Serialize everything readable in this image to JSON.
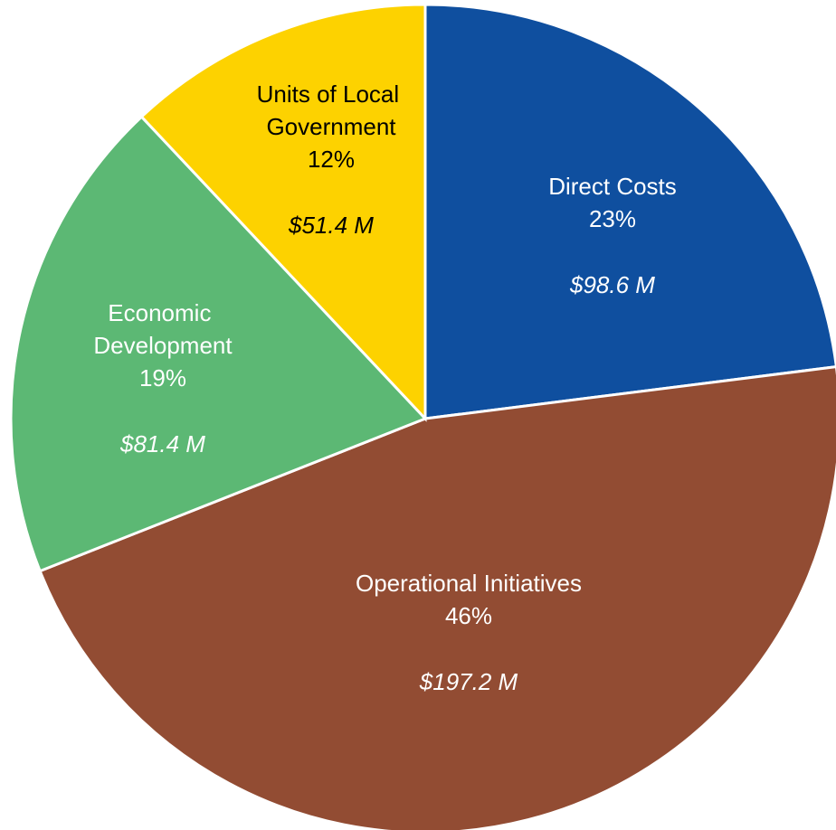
{
  "chart_data": {
    "type": "pie",
    "categories": [
      "Direct Costs",
      "Operational Initiatives",
      "Economic Development",
      "Units of Local Government"
    ],
    "values": [
      23,
      46,
      19,
      12
    ],
    "value_labels": [
      "23%",
      "46%",
      "19%",
      "12%"
    ],
    "amounts": [
      98.6,
      197.2,
      81.4,
      51.4
    ],
    "amount_labels": [
      "$98.6 M",
      "$197.2 M",
      "$81.4 M",
      "$51.4 M"
    ],
    "colors": [
      "#0f4f9f",
      "#924c33",
      "#5cb874",
      "#fdd200"
    ],
    "label_colors": [
      "#ffffff",
      "#ffffff",
      "#ffffff",
      "#000000"
    ]
  }
}
